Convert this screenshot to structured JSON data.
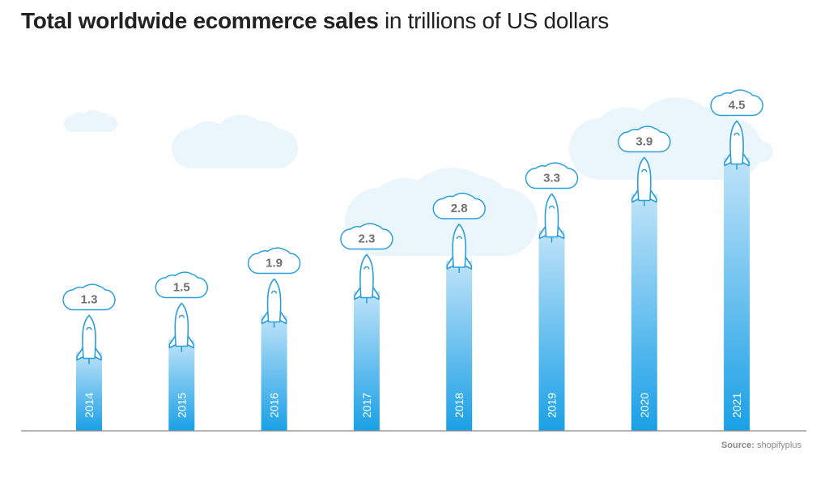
{
  "title": {
    "bold": "Total worldwide ecommerce sales",
    "light": "in trillions of US dollars"
  },
  "source": {
    "label": "Source:",
    "value": "shopifyplus"
  },
  "colors": {
    "bar_top": "#bfe3f8",
    "bar_bottom": "#1aa0e6",
    "outline": "#2a9fdc",
    "background_cloud": "#eaf5fc",
    "value_text": "#707070",
    "baseline": "#888888"
  },
  "icons": {
    "bar_top": "rocket-icon",
    "value_bubble": "cloud-icon"
  },
  "chart_data": {
    "type": "bar",
    "categories": [
      "2014",
      "2015",
      "2016",
      "2017",
      "2018",
      "2019",
      "2020",
      "2021"
    ],
    "values": [
      1.3,
      1.5,
      1.9,
      2.3,
      2.8,
      3.3,
      3.9,
      4.5
    ],
    "value_labels": [
      "1.3",
      "1.5",
      "1.9",
      "2.3",
      "2.8",
      "3.3",
      "3.9",
      "4.5"
    ],
    "title": "Total worldwide ecommerce sales in trillions of US dollars",
    "xlabel": "",
    "ylabel": "",
    "ylim": [
      0,
      5.6
    ],
    "grid": false,
    "legend": "none"
  }
}
